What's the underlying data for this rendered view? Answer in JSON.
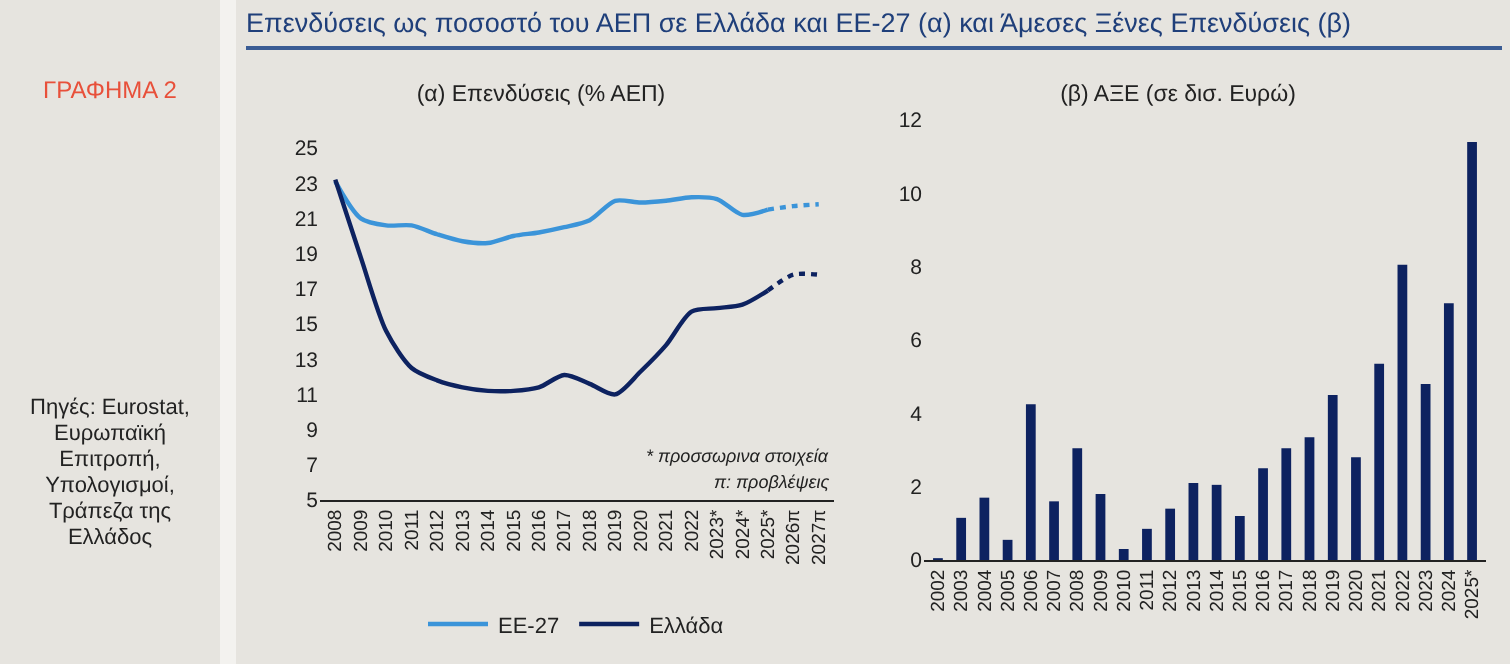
{
  "chart_data": [
    {
      "type": "other",
      "title": "Επενδύσεις ως ποσοστό του ΑΕΠ σε Ελλάδα και ΕΕ-27 (α) και Άμεσες Ξένες Επενδύσεις (β)",
      "annotations": [
        "ΓΡΑΦΗΜΑ 2",
        "Πηγές: Eurostat, Ευρωπαϊκή Επιτροπή, Υπολογισμοί, Τράπεζα της Ελλάδος"
      ]
    },
    {
      "type": "line",
      "title": "(α) Επενδύσεις (% ΑΕΠ)",
      "categories": [
        "2008",
        "2009",
        "2010",
        "2011",
        "2012",
        "2013",
        "2014",
        "2015",
        "2016",
        "2017",
        "2018",
        "2019",
        "2020",
        "2021",
        "2022",
        "2023*",
        "2024*",
        "2025*",
        "2026π",
        "2027π"
      ],
      "series": [
        {
          "name": "ΕΕ-27",
          "color": "#3b94d9",
          "line_style": "solid",
          "values": [
            23.1,
            21.0,
            20.6,
            20.6,
            20.1,
            19.7,
            19.6,
            20.0,
            20.2,
            20.5,
            20.9,
            22.0,
            21.9,
            22.0,
            22.2,
            22.1,
            21.2,
            21.5,
            null,
            null
          ]
        },
        {
          "name": "Ελλάδα",
          "color": "#0d2260",
          "line_style": "solid",
          "values": [
            23.2,
            18.8,
            14.6,
            12.5,
            11.8,
            11.4,
            11.2,
            11.2,
            11.4,
            12.1,
            11.6,
            11.0,
            12.3,
            13.8,
            15.7,
            15.9,
            16.1,
            16.9,
            null,
            null
          ]
        },
        {
          "color": "#3b94d9",
          "line_style": "dotted",
          "values": [
            null,
            null,
            null,
            null,
            null,
            null,
            null,
            null,
            null,
            null,
            null,
            null,
            null,
            null,
            null,
            null,
            null,
            21.5,
            21.7,
            21.8
          ]
        },
        {
          "color": "#0d2260",
          "line_style": "dotted",
          "values": [
            null,
            null,
            null,
            null,
            null,
            null,
            null,
            null,
            null,
            null,
            null,
            null,
            null,
            null,
            null,
            null,
            null,
            16.9,
            17.8,
            17.8
          ]
        }
      ],
      "ylim": [
        5,
        25
      ],
      "yticks": [
        5,
        7,
        9,
        11,
        13,
        15,
        17,
        19,
        21,
        23,
        25
      ],
      "grid": false,
      "legend": "bottom",
      "marker": "none",
      "annotations": [
        "* προσσωρινα στοιχεία",
        "π: προβλέψεις"
      ]
    },
    {
      "type": "bar",
      "title": "(β) ΑΞΕ (σε δισ. Ευρώ)",
      "categories": [
        "2002",
        "2003",
        "2004",
        "2005",
        "2006",
        "2007",
        "2008",
        "2009",
        "2010",
        "2011",
        "2012",
        "2013",
        "2014",
        "2015",
        "2016",
        "2017",
        "2018",
        "2019",
        "2020",
        "2021",
        "2022",
        "2023",
        "2024",
        "2025*"
      ],
      "values": [
        0.05,
        1.15,
        1.7,
        0.55,
        4.25,
        1.6,
        3.05,
        1.8,
        0.3,
        0.85,
        1.4,
        2.1,
        2.05,
        1.2,
        2.5,
        3.05,
        3.35,
        4.5,
        2.8,
        5.35,
        8.05,
        4.8,
        7.0,
        11.4
      ],
      "color": "#0d2260",
      "ylim": [
        0,
        12
      ],
      "yticks": [
        0,
        2,
        4,
        6,
        8,
        10,
        12
      ],
      "grid": false,
      "legend": false
    }
  ]
}
